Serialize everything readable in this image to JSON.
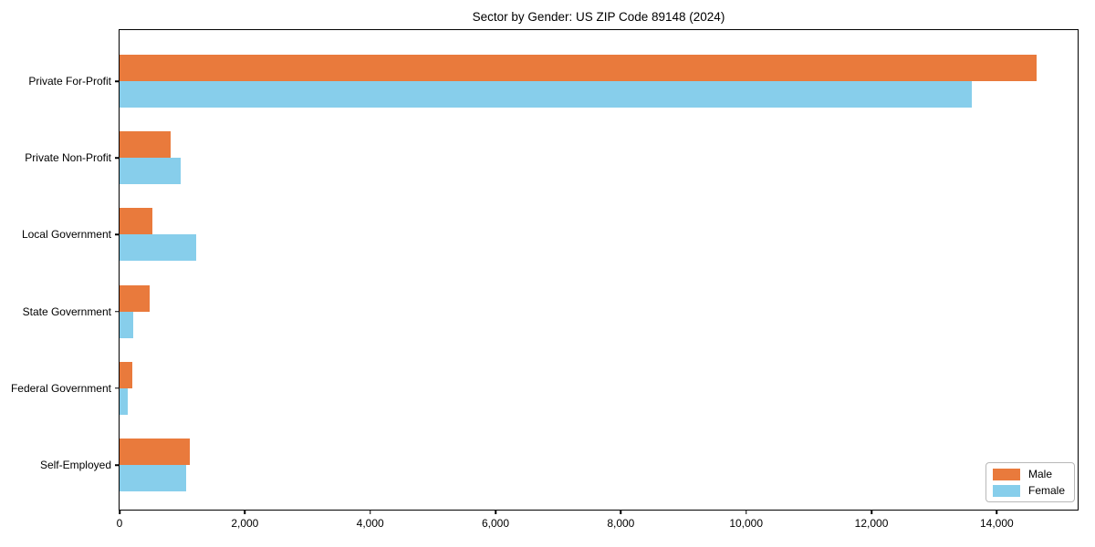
{
  "figure": {
    "title": "Sector by Gender: US ZIP Code 89148 (2024)"
  },
  "chart_data": {
    "type": "bar",
    "orientation": "horizontal",
    "title": "Sector by Gender: US ZIP Code 89148 (2024)",
    "categories": [
      "Private For-Profit",
      "Private Non-Profit",
      "Local Government",
      "State Government",
      "Federal Government",
      "Self-Employed"
    ],
    "series": [
      {
        "name": "Male",
        "color": "#E97A3C",
        "values": [
          14630,
          810,
          530,
          480,
          200,
          1125
        ]
      },
      {
        "name": "Female",
        "color": "#87CEEB",
        "values": [
          13600,
          980,
          1230,
          220,
          135,
          1060
        ]
      }
    ],
    "xlabel": "",
    "ylabel": "",
    "xlim": [
      0,
      15320
    ],
    "xticks": [
      0,
      2000,
      4000,
      6000,
      8000,
      10000,
      12000,
      14000
    ],
    "xtick_labels": [
      "0",
      "2,000",
      "4,000",
      "6,000",
      "8,000",
      "10,000",
      "12,000",
      "14,000"
    ],
    "grid": false,
    "legend": {
      "position": "lower-right",
      "entries": [
        "Male",
        "Female"
      ]
    }
  }
}
